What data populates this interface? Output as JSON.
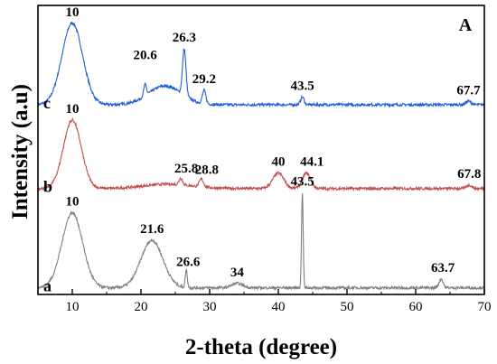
{
  "chart_data": {
    "type": "line",
    "panel_label": "A",
    "xlabel": "2-theta (degree)",
    "ylabel": "Intensity (a.u)",
    "xlim": [
      5,
      70
    ],
    "x_ticks": [
      10,
      20,
      30,
      40,
      50,
      60,
      70
    ],
    "y_ticks_labeled": false,
    "grid": false,
    "legend": "none",
    "series": [
      {
        "name": "c",
        "color": "#1f5fd6",
        "baseline": 1.72,
        "peaks": [
          {
            "x": 10,
            "height": 0.74,
            "width": 1.5,
            "label": "10"
          },
          {
            "x": 20.6,
            "height": 0.1,
            "width": 0.2,
            "label": "20.6"
          },
          {
            "x": 23.5,
            "height": 0.17,
            "width": 2.4,
            "label": ""
          },
          {
            "x": 26.3,
            "height": 0.42,
            "width": 0.25,
            "label": "26.3"
          },
          {
            "x": 29.2,
            "height": 0.12,
            "width": 0.25,
            "label": "29.2"
          },
          {
            "x": 43.5,
            "height": 0.07,
            "width": 0.25,
            "label": "43.5"
          },
          {
            "x": 67.7,
            "height": 0.03,
            "width": 0.4,
            "label": "67.7"
          }
        ]
      },
      {
        "name": "b",
        "color": "#c0504d",
        "baseline": 0.96,
        "peaks": [
          {
            "x": 10,
            "height": 0.62,
            "width": 1.3,
            "label": "10"
          },
          {
            "x": 24.0,
            "height": 0.04,
            "width": 3.5,
            "label": ""
          },
          {
            "x": 25.8,
            "height": 0.06,
            "width": 0.25,
            "label": "25.8"
          },
          {
            "x": 28.8,
            "height": 0.07,
            "width": 0.3,
            "label": "28.8"
          },
          {
            "x": 40,
            "height": 0.14,
            "width": 0.8,
            "label": "40"
          },
          {
            "x": 44.1,
            "height": 0.14,
            "width": 0.6,
            "label": "44.1"
          },
          {
            "x": 67.8,
            "height": 0.03,
            "width": 0.4,
            "label": "67.8"
          }
        ]
      },
      {
        "name": "a",
        "color": "#808080",
        "baseline": 0.06,
        "peaks": [
          {
            "x": 10,
            "height": 0.68,
            "width": 1.5,
            "label": "10"
          },
          {
            "x": 21.6,
            "height": 0.43,
            "width": 1.6,
            "label": "21.6"
          },
          {
            "x": 26.6,
            "height": 0.16,
            "width": 0.15,
            "label": "26.6"
          },
          {
            "x": 34,
            "height": 0.04,
            "width": 0.8,
            "label": "34"
          },
          {
            "x": 43.5,
            "height": 0.86,
            "width": 0.12,
            "label": "43.5"
          },
          {
            "x": 63.7,
            "height": 0.08,
            "width": 0.3,
            "label": "63.7"
          }
        ]
      }
    ]
  }
}
